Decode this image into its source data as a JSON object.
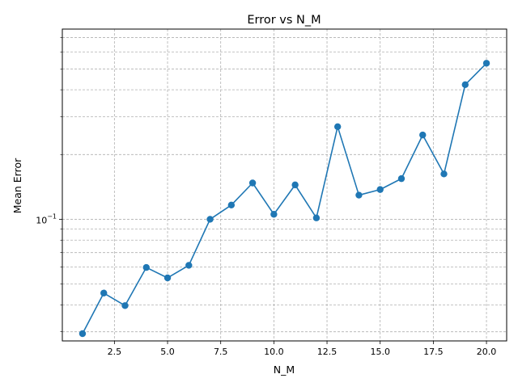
{
  "chart_data": {
    "type": "line",
    "title": "Error vs N_M",
    "xlabel": "N_M",
    "ylabel": "Mean Error",
    "yscale": "log",
    "xlim": [
      0.05,
      20.95
    ],
    "ylim": [
      0.0272,
      0.766
    ],
    "grid": true,
    "grid_style": "dashed",
    "line_color": "#1f77b4",
    "marker": "circle",
    "x_ticks": [
      2.5,
      5.0,
      7.5,
      10.0,
      12.5,
      15.0,
      17.5,
      20.0
    ],
    "x_tick_labels": [
      "2.5",
      "5.0",
      "7.5",
      "10.0",
      "12.5",
      "15.0",
      "17.5",
      "20.0"
    ],
    "y_major_ticks": [
      0.1
    ],
    "y_major_tick_labels": [
      "10",
      "−1"
    ],
    "y_minor_ticks": [
      0.03,
      0.04,
      0.05,
      0.06,
      0.07,
      0.08,
      0.09,
      0.2,
      0.3,
      0.4,
      0.5,
      0.6,
      0.7
    ],
    "x": [
      1,
      2,
      3,
      4,
      5,
      6,
      7,
      8,
      9,
      10,
      11,
      12,
      13,
      14,
      15,
      16,
      17,
      18,
      19,
      20
    ],
    "y": [
      0.0294,
      0.0454,
      0.0397,
      0.0597,
      0.0534,
      0.0611,
      0.1,
      0.1165,
      0.1475,
      0.1055,
      0.1445,
      0.1015,
      0.2695,
      0.1295,
      0.1375,
      0.1545,
      0.2465,
      0.1625,
      0.4225,
      0.5315
    ]
  }
}
